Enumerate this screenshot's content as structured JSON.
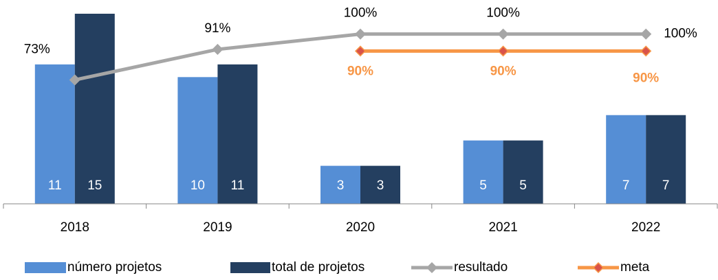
{
  "chart_data": {
    "type": "bar-line",
    "categories": [
      "2018",
      "2019",
      "2020",
      "2021",
      "2022"
    ],
    "series": [
      {
        "name": "número projetos",
        "type": "bar",
        "color": "#558ed5",
        "values": [
          11,
          10,
          3,
          5,
          7
        ]
      },
      {
        "name": "total de projetos",
        "type": "bar",
        "color": "#243f60",
        "values": [
          15,
          11,
          3,
          5,
          7
        ]
      },
      {
        "name": "resultado",
        "type": "line",
        "axis": "y2",
        "color": "#a6a6a6",
        "marker_color": "#a6a6a6",
        "values": [
          73,
          91,
          100,
          100,
          100
        ],
        "value_labels": [
          "73%",
          "91%",
          "100%",
          "100%",
          "100%"
        ]
      },
      {
        "name": "meta",
        "type": "line",
        "axis": "y2",
        "color": "#f79646",
        "marker_color": "#d9534a",
        "values": [
          null,
          null,
          90,
          90,
          90
        ],
        "value_labels": [
          null,
          null,
          "90%",
          "90%",
          "90%"
        ]
      }
    ],
    "ylim": [
      0,
      15
    ],
    "y2lim": [
      0,
      112
    ],
    "legend": "bottom"
  }
}
